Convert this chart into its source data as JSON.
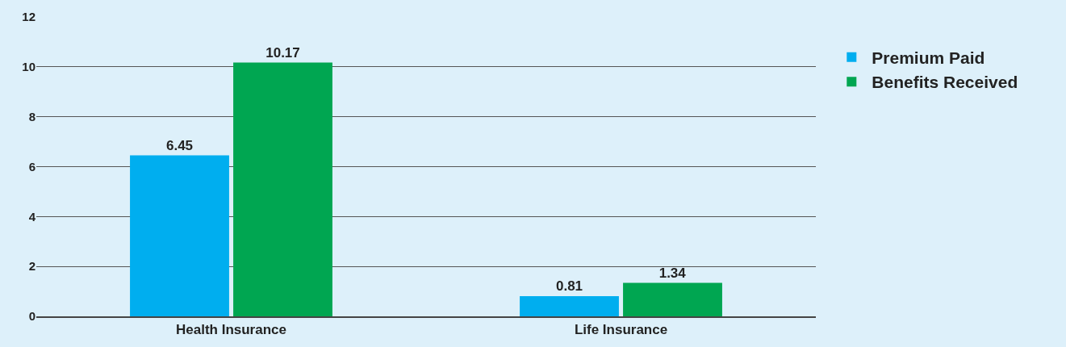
{
  "chart_data": {
    "type": "bar",
    "categories": [
      "Health Insurance",
      "Life Insurance"
    ],
    "series": [
      {
        "name": "Premium Paid",
        "color": "#00aeef",
        "values": [
          6.45,
          0.81
        ]
      },
      {
        "name": "Benefits Received",
        "color": "#00a651",
        "values": [
          10.17,
          1.34
        ]
      }
    ],
    "ylim": [
      0,
      12
    ],
    "yticks": [
      0,
      2,
      4,
      6,
      8,
      10,
      12
    ],
    "grid": "y",
    "legend": "right",
    "data_labels": true
  }
}
